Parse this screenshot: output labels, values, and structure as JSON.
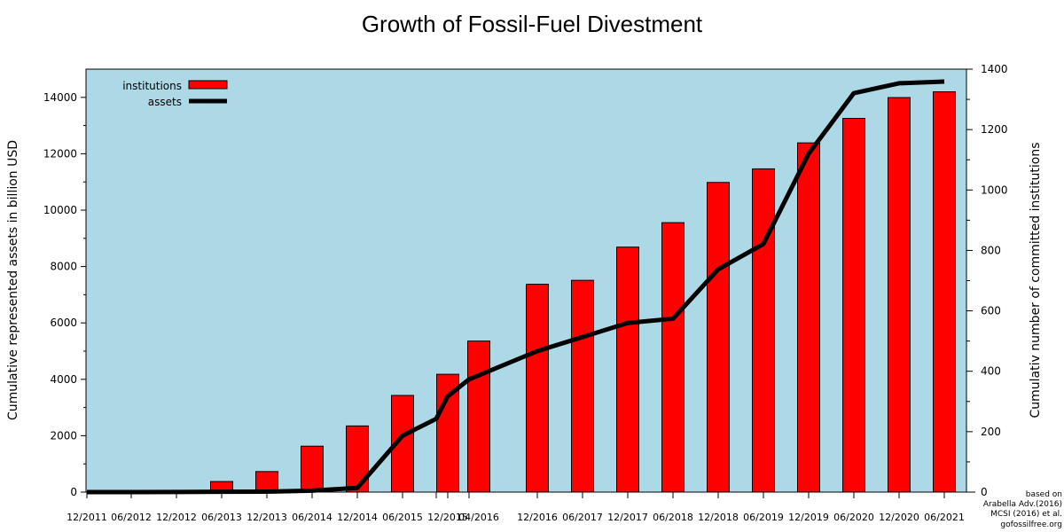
{
  "chart_data": {
    "type": "bar",
    "title": "Growth of Fossil-Fuel Divestment",
    "ylabel": "Cumulative represented assets in billion USD",
    "y2label": "Cumulativ number of committed institutions",
    "xlabel": "",
    "ylim": [
      0,
      15000
    ],
    "y2lim": [
      0,
      1400
    ],
    "yticks": [
      0,
      2000,
      4000,
      6000,
      8000,
      10000,
      12000,
      14000
    ],
    "y2ticks": [
      0,
      200,
      400,
      600,
      800,
      1000,
      1200,
      1400
    ],
    "background": "#add8e6",
    "grid": false,
    "legend_position": "top-left",
    "x_tick_labels": [
      "12/2011",
      "06/2012",
      "12/2012",
      "06/2013",
      "12/2013",
      "06/2014",
      "12/2014",
      "06/2015",
      "12/2015",
      "04/2016",
      "12/2016",
      "06/2017",
      "12/2017",
      "06/2018",
      "12/2018",
      "06/2019",
      "12/2019",
      "06/2020",
      "12/2020",
      "06/2021"
    ],
    "series": [
      {
        "name": "institutions",
        "kind": "bar",
        "axis": "right",
        "color": "#ff0000",
        "points": [
          {
            "x": "06/2013",
            "y": 35
          },
          {
            "x": "12/2013",
            "y": 68
          },
          {
            "x": "06/2014",
            "y": 152
          },
          {
            "x": "12/2014",
            "y": 219
          },
          {
            "x": "06/2015",
            "y": 320
          },
          {
            "x": "12/2015",
            "y": 390
          },
          {
            "x": "04/2016",
            "y": 500
          },
          {
            "x": "12/2016",
            "y": 688
          },
          {
            "x": "06/2017",
            "y": 701
          },
          {
            "x": "12/2017",
            "y": 811
          },
          {
            "x": "06/2018",
            "y": 892
          },
          {
            "x": "12/2018",
            "y": 1025
          },
          {
            "x": "06/2019",
            "y": 1070
          },
          {
            "x": "12/2019",
            "y": 1156
          },
          {
            "x": "06/2020",
            "y": 1237
          },
          {
            "x": "12/2020",
            "y": 1306
          },
          {
            "x": "06/2021",
            "y": 1325
          }
        ]
      },
      {
        "name": "assets",
        "kind": "line",
        "axis": "left",
        "color": "#000000",
        "points": [
          {
            "x": "12/2011",
            "y": 0
          },
          {
            "x": "06/2012",
            "y": 0
          },
          {
            "x": "12/2012",
            "y": 5
          },
          {
            "x": "06/2013",
            "y": 10
          },
          {
            "x": "12/2013",
            "y": 15
          },
          {
            "x": "06/2014",
            "y": 50
          },
          {
            "x": "12/2014",
            "y": 150
          },
          {
            "x": "06/2015",
            "y": 2000
          },
          {
            "x": "12/2015",
            "y": 2600
          },
          {
            "x": "12/2015",
            "y": 3400
          },
          {
            "x": "04/2016",
            "y": 4000
          },
          {
            "x": "12/2016",
            "y": 5000
          },
          {
            "x": "06/2017",
            "y": 5500
          },
          {
            "x": "12/2017",
            "y": 6000
          },
          {
            "x": "06/2018",
            "y": 6150
          },
          {
            "x": "12/2018",
            "y": 7900
          },
          {
            "x": "06/2019",
            "y": 8800
          },
          {
            "x": "12/2019",
            "y": 12000
          },
          {
            "x": "06/2020",
            "y": 14150
          },
          {
            "x": "12/2020",
            "y": 14500
          },
          {
            "x": "06/2021",
            "y": 14560
          }
        ]
      }
    ]
  },
  "credit": {
    "lines": [
      "based on",
      "Arabella Adv.(2016)",
      "MCSI (2016) et al.",
      "gofossilfree.org"
    ]
  }
}
